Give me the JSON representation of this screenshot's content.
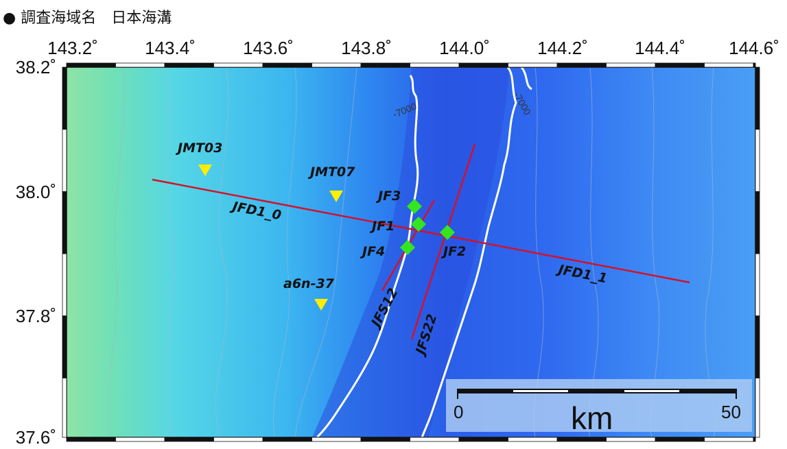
{
  "title": "● 調査海域名　日本海溝",
  "axes": {
    "x_ticks": [
      "143.2˚",
      "143.4˚",
      "143.6˚",
      "143.8˚",
      "144.0˚",
      "144.2˚",
      "144.4˚",
      "144.6˚"
    ],
    "y_ticks": [
      "38.2˚",
      "38.0˚",
      "37.8˚",
      "37.6˚"
    ]
  },
  "contours": [
    "-7000",
    "-7000"
  ],
  "lines": [
    "JFD1_0",
    "JFD1_1",
    "JFS12",
    "JFS22"
  ],
  "markers_diamond": [
    "JF3",
    "JF1",
    "JF2",
    "JF4"
  ],
  "markers_triangle": [
    "JMT03",
    "JMT07",
    "a6n-37"
  ],
  "scale_bar": {
    "start": "0",
    "end": "50",
    "unit": "km"
  },
  "colors": {
    "line": "#d4112a",
    "diamond": "#33e61f",
    "triangle": "#ffee00"
  }
}
